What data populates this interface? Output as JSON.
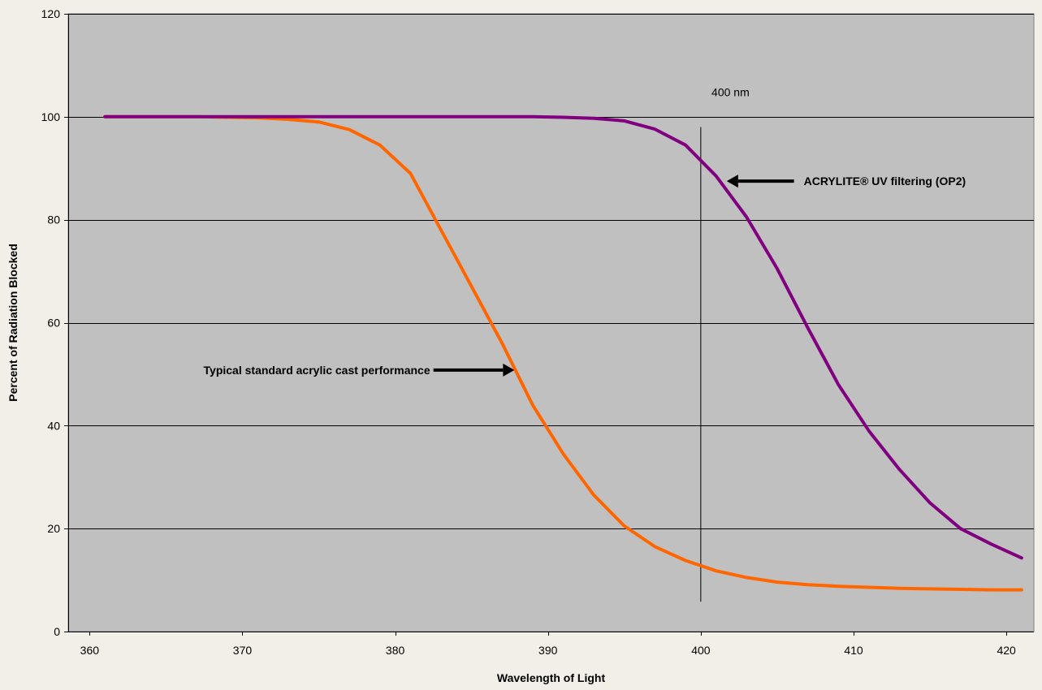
{
  "chart_data": {
    "type": "line",
    "title": "",
    "xlabel": "Wavelength of Light",
    "ylabel": "Percent of Radiation Blocked",
    "xlim": [
      358.6,
      421.8
    ],
    "ylim": [
      0,
      120
    ],
    "x_ticks": [
      360,
      370,
      380,
      390,
      400,
      410,
      420
    ],
    "y_ticks": [
      0,
      20,
      40,
      60,
      80,
      100,
      120
    ],
    "grid": "horizontal",
    "legend": "none",
    "colors": {
      "plot_bg": "#c0c0c0",
      "page_bg": "#f2efe8",
      "grid": "#000000"
    },
    "series": [
      {
        "color": "#ff6600",
        "x": [
          361,
          363,
          365,
          367,
          369,
          371,
          373,
          375,
          377,
          379,
          381,
          383,
          385,
          387,
          389,
          391,
          393,
          395,
          397,
          399,
          401,
          403,
          405,
          407,
          409,
          411,
          413,
          415,
          417,
          419,
          421
        ],
        "y": [
          100,
          100,
          100,
          100,
          99.9,
          99.8,
          99.5,
          99,
          97.5,
          94.5,
          89,
          78,
          67,
          56,
          44,
          34.5,
          26.5,
          20.5,
          16.5,
          13.8,
          11.8,
          10.5,
          9.6,
          9.1,
          8.8,
          8.6,
          8.4,
          8.3,
          8.2,
          8.1,
          8.1
        ]
      },
      {
        "color": "#800080",
        "x": [
          361,
          363,
          365,
          367,
          369,
          371,
          373,
          375,
          377,
          379,
          381,
          383,
          385,
          387,
          389,
          391,
          393,
          395,
          397,
          399,
          401,
          403,
          405,
          407,
          409,
          411,
          413,
          415,
          417,
          419,
          421
        ],
        "y": [
          100,
          100,
          100,
          100,
          100,
          100,
          100,
          100,
          100,
          100,
          100,
          100,
          100,
          100,
          100,
          99.9,
          99.7,
          99.2,
          97.6,
          94.5,
          88.5,
          80.5,
          70.5,
          59,
          48,
          39,
          31.5,
          25,
          20,
          17,
          14.3
        ]
      }
    ],
    "vertical_line": {
      "x": 400,
      "y_from": 5.8,
      "y_to": 98
    },
    "annotations": [
      {
        "text": "400 nm",
        "x": 400.7,
        "y": 104
      },
      {
        "text": "ACRYLITE® UV filtering (OP2)",
        "arrow_from_x": 406.1,
        "arrow_to_x": 401.7,
        "y": 87.5
      },
      {
        "text": "Typical standard acrylic cast performance",
        "arrow_from_x": 382.5,
        "arrow_to_x": 387.8,
        "y": 50.8
      }
    ]
  }
}
